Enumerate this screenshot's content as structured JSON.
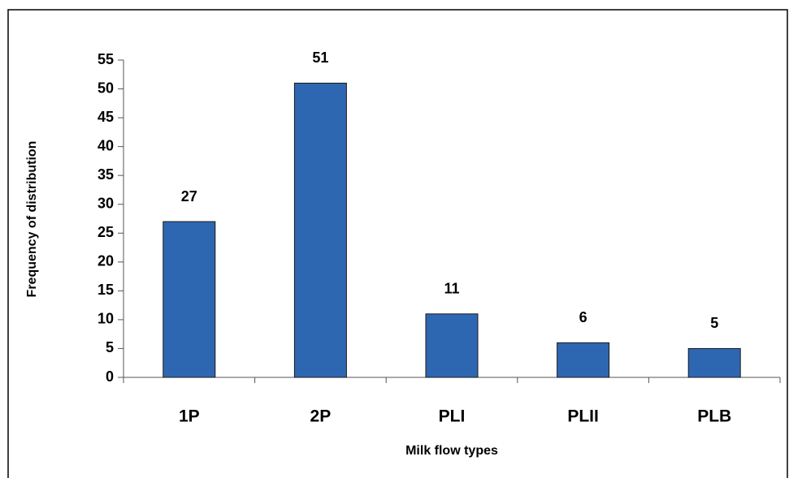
{
  "chart_data": {
    "type": "bar",
    "categories": [
      "1P",
      "2P",
      "PLI",
      "PLII",
      "PLB"
    ],
    "values": [
      27,
      51,
      11,
      6,
      5
    ],
    "color": "#2e67b1",
    "xlabel": "Milk flow types",
    "ylabel": "Frequency of distribution",
    "ylim": [
      0,
      55
    ],
    "yticks": [
      0,
      5,
      10,
      15,
      20,
      25,
      30,
      35,
      40,
      45,
      50,
      55
    ],
    "grid": false
  }
}
